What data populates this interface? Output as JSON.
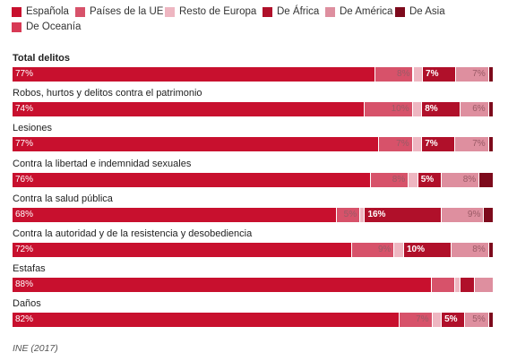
{
  "colors": [
    "#c8102e",
    "#d7526a",
    "#eeb6c1",
    "#b0102a",
    "#de8f9f",
    "#7d0a1c",
    "#d83a55"
  ],
  "chart_data": {
    "type": "bar",
    "orientation": "horizontal",
    "stacked": true,
    "percent": true,
    "legend_position": "top",
    "categories": [
      "Total delitos",
      "Robos, hurtos y delitos contra el patrimonio",
      "Lesiones",
      "Contra la libertad e indemnidad sexuales",
      "Contra la salud pública",
      "Contra la autoridad y de la resistencia y desobediencia",
      "Estafas",
      "Daños"
    ],
    "series": [
      {
        "name": "Española",
        "values": [
          77,
          74,
          77,
          76,
          68,
          72,
          88,
          82
        ]
      },
      {
        "name": "Países de la UE",
        "values": [
          8,
          10,
          7,
          8,
          5,
          9,
          5,
          7
        ]
      },
      {
        "name": "Resto de Europa",
        "values": [
          2,
          2,
          2,
          2,
          1,
          2,
          1,
          2
        ]
      },
      {
        "name": "De África",
        "values": [
          7,
          8,
          7,
          5,
          16,
          10,
          3,
          5
        ]
      },
      {
        "name": "De América",
        "values": [
          7,
          6,
          7,
          8,
          9,
          8,
          4,
          5
        ]
      },
      {
        "name": "De Asia",
        "values": [
          1,
          1,
          1,
          3,
          2,
          1,
          0,
          1
        ]
      },
      {
        "name": "De Oceanía",
        "values": [
          0,
          0,
          0,
          0,
          0,
          0,
          0,
          0
        ]
      }
    ],
    "data_labels": [
      [
        "77%",
        "8%",
        "",
        "7%",
        "7%",
        "",
        ""
      ],
      [
        "74%",
        "10%",
        "",
        "8%",
        "6%",
        "",
        ""
      ],
      [
        "77%",
        "7%",
        "",
        "7%",
        "7%",
        "",
        ""
      ],
      [
        "76%",
        "8%",
        "",
        "5%",
        "8%",
        "",
        ""
      ],
      [
        "68%",
        "5%",
        "",
        "16%",
        "9%",
        "",
        ""
      ],
      [
        "72%",
        "9%",
        "",
        "10%",
        "8%",
        "",
        ""
      ],
      [
        "88%",
        "",
        "",
        "",
        "",
        "",
        ""
      ],
      [
        "82%",
        "7%",
        "",
        "5%",
        "5%",
        "",
        ""
      ]
    ],
    "source": "INE (2017)"
  }
}
